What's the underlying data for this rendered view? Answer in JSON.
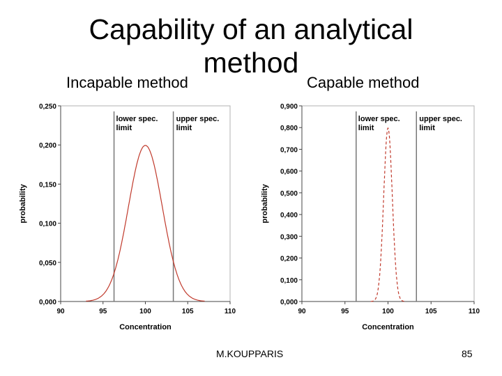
{
  "slide": {
    "title_line1": "Capability of an analytical",
    "title_line2": "method",
    "left_subtitle": "Incapable method",
    "right_subtitle": "Capable method",
    "author": "M.KOUPPARIS",
    "page_number": "85"
  },
  "chart_data": [
    {
      "type": "line",
      "title": "",
      "xlabel": "Concentration",
      "ylabel": "probability",
      "xlim": [
        90,
        110
      ],
      "ylim": [
        0,
        0.25
      ],
      "xticks": [
        90,
        95,
        100,
        105,
        110
      ],
      "xtick_labels": [
        "90",
        "95",
        "100",
        "105",
        "110"
      ],
      "yticks": [
        0,
        0.05,
        0.1,
        0.15,
        0.2,
        0.25
      ],
      "ytick_labels": [
        "0,000",
        "0,050",
        "0,100",
        "0,150",
        "0,200",
        "0,250"
      ],
      "series": [
        {
          "style": "solid",
          "color": "#c0392b",
          "distribution": "normal",
          "mean": 100,
          "sd": 2,
          "x_range": [
            93,
            107
          ]
        }
      ],
      "limits": [
        {
          "x": 96.3,
          "label_line1": "lower spec.",
          "label_line2": "limit"
        },
        {
          "x": 103.3,
          "label_line1": "upper spec.",
          "label_line2": "limit"
        }
      ]
    },
    {
      "type": "line",
      "title": "",
      "xlabel": "Concentration",
      "ylabel": "probability",
      "xlim": [
        90,
        110
      ],
      "ylim": [
        0,
        0.9
      ],
      "xticks": [
        90,
        95,
        100,
        105,
        110
      ],
      "xtick_labels": [
        "90",
        "95",
        "100",
        "105",
        "110"
      ],
      "yticks": [
        0,
        0.1,
        0.2,
        0.3,
        0.4,
        0.5,
        0.6,
        0.7,
        0.8,
        0.9
      ],
      "ytick_labels": [
        "0,000",
        "0,100",
        "0,200",
        "0,300",
        "0,400",
        "0,500",
        "0,600",
        "0,700",
        "0,800",
        "0,900"
      ],
      "series": [
        {
          "style": "dashed",
          "color": "#c0392b",
          "distribution": "normal",
          "mean": 100,
          "sd": 0.5,
          "x_range": [
            98,
            102
          ]
        }
      ],
      "limits": [
        {
          "x": 96.3,
          "label_line1": "lower spec.",
          "label_line2": "limit"
        },
        {
          "x": 103.3,
          "label_line1": "upper spec.",
          "label_line2": "limit"
        }
      ]
    }
  ]
}
